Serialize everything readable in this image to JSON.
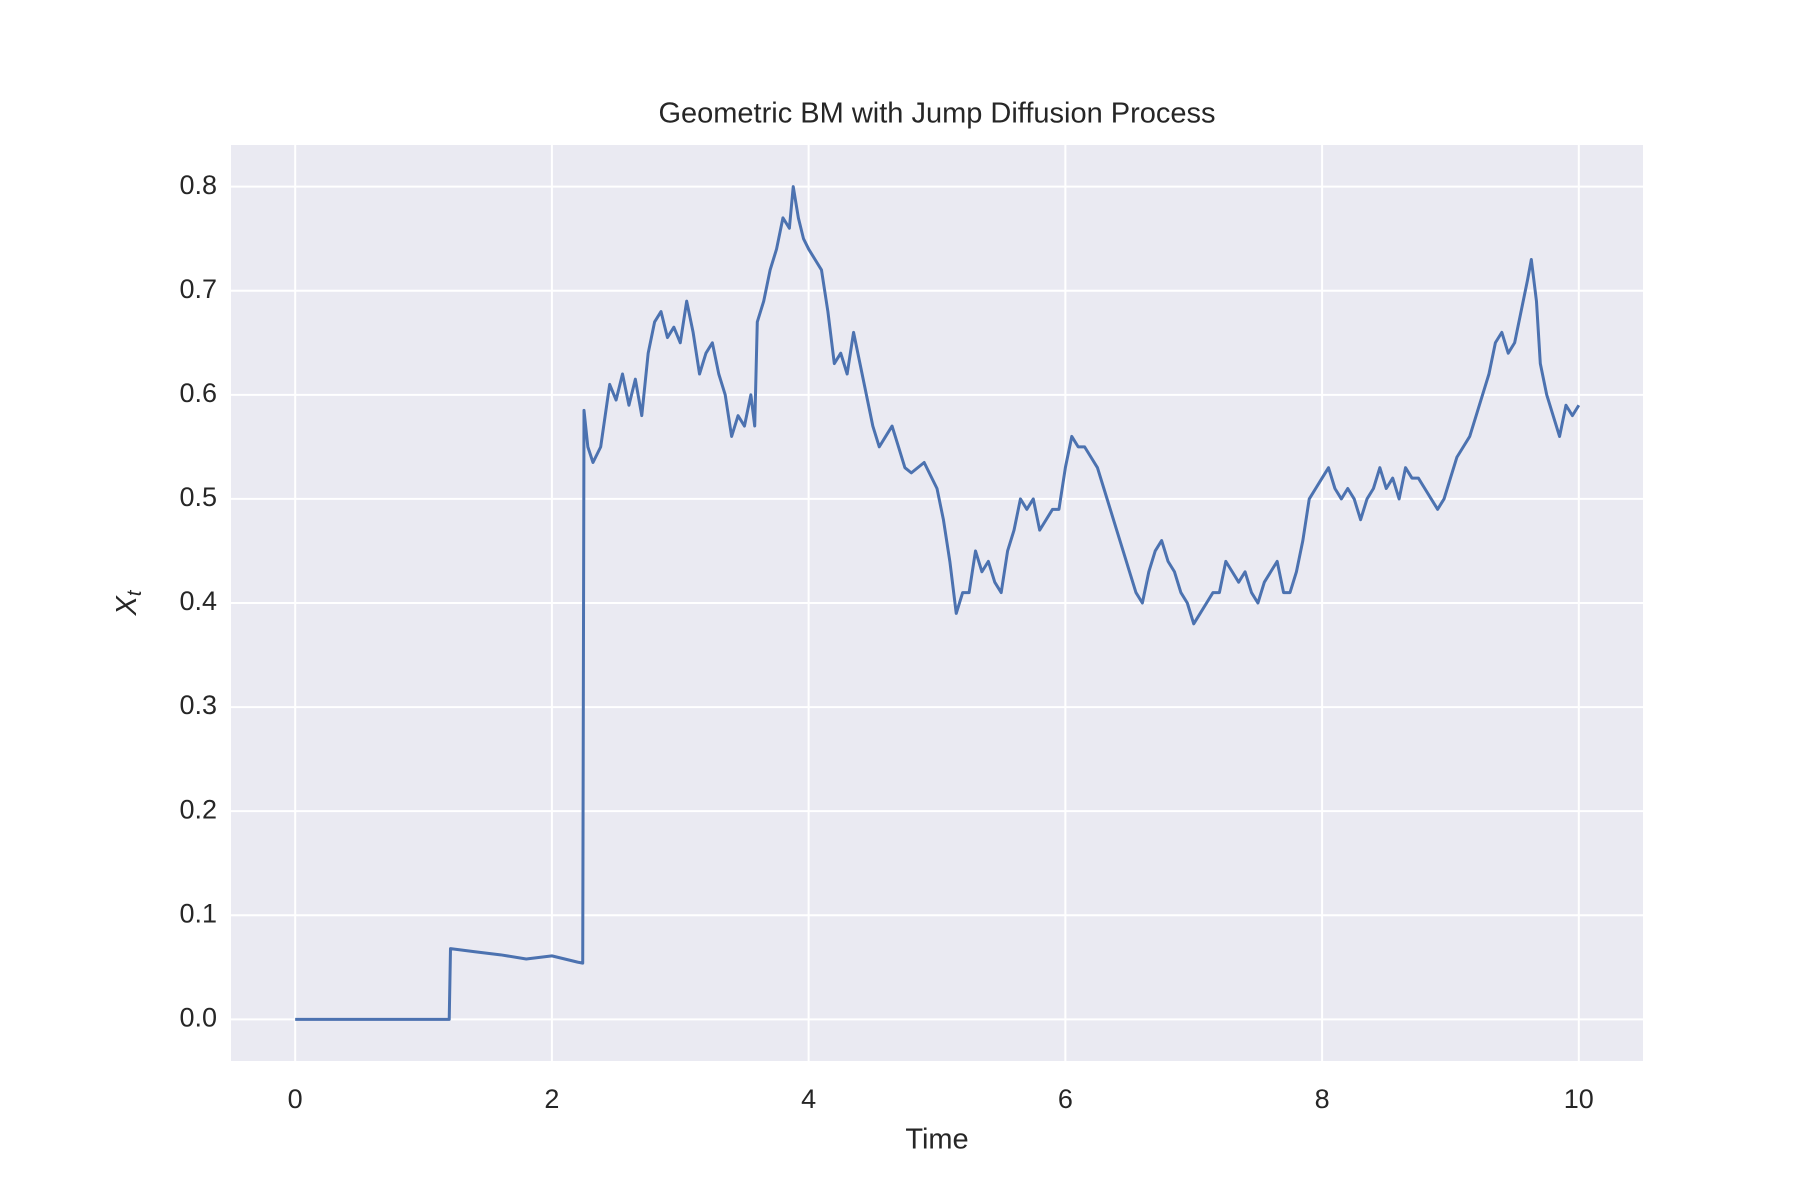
{
  "chart_data": {
    "type": "line",
    "title": "Geometric BM with Jump Diffusion Process",
    "xlabel": "Time",
    "ylabel": {
      "base": "X",
      "subscript": "t"
    },
    "color": "#4c72b0",
    "grid": true,
    "xlim": [
      -0.5,
      10.5
    ],
    "ylim": [
      -0.04,
      0.84
    ],
    "xticks": [
      0,
      2,
      4,
      6,
      8,
      10
    ],
    "yticks": [
      {
        "value": 0,
        "label": "0.0"
      },
      0.1,
      0.2,
      0.3,
      0.4,
      0.5,
      0.6,
      0.7,
      0.8
    ],
    "x": [
      0,
      1.2,
      1.21,
      1.4,
      1.6,
      1.8,
      2.0,
      2.2,
      2.24,
      2.25,
      2.28,
      2.32,
      2.38,
      2.45,
      2.5,
      2.55,
      2.6,
      2.65,
      2.7,
      2.75,
      2.8,
      2.85,
      2.9,
      2.95,
      3.0,
      3.05,
      3.1,
      3.15,
      3.2,
      3.25,
      3.3,
      3.35,
      3.4,
      3.45,
      3.5,
      3.55,
      3.58,
      3.6,
      3.65,
      3.7,
      3.75,
      3.8,
      3.85,
      3.88,
      3.92,
      3.96,
      4.0,
      4.05,
      4.1,
      4.15,
      4.2,
      4.25,
      4.3,
      4.35,
      4.4,
      4.45,
      4.5,
      4.55,
      4.6,
      4.65,
      4.7,
      4.75,
      4.8,
      4.9,
      5.0,
      5.05,
      5.1,
      5.15,
      5.2,
      5.25,
      5.3,
      5.35,
      5.4,
      5.45,
      5.5,
      5.55,
      5.6,
      5.65,
      5.7,
      5.75,
      5.8,
      5.85,
      5.9,
      5.95,
      6.0,
      6.05,
      6.1,
      6.15,
      6.2,
      6.25,
      6.3,
      6.35,
      6.4,
      6.45,
      6.5,
      6.55,
      6.6,
      6.65,
      6.7,
      6.75,
      6.8,
      6.85,
      6.9,
      6.95,
      7.0,
      7.05,
      7.1,
      7.15,
      7.2,
      7.25,
      7.3,
      7.35,
      7.4,
      7.45,
      7.5,
      7.55,
      7.6,
      7.65,
      7.7,
      7.75,
      7.8,
      7.85,
      7.9,
      7.95,
      8.0,
      8.05,
      8.1,
      8.15,
      8.2,
      8.25,
      8.3,
      8.35,
      8.4,
      8.45,
      8.5,
      8.55,
      8.6,
      8.65,
      8.7,
      8.75,
      8.8,
      8.85,
      8.9,
      8.95,
      9.0,
      9.05,
      9.1,
      9.15,
      9.2,
      9.25,
      9.3,
      9.35,
      9.4,
      9.45,
      9.5,
      9.55,
      9.6,
      9.63,
      9.67,
      9.7,
      9.75,
      9.8,
      9.85,
      9.9,
      9.95,
      10.0
    ],
    "values": [
      0,
      0,
      0.068,
      0.065,
      0.062,
      0.058,
      0.061,
      0.055,
      0.054,
      0.585,
      0.55,
      0.535,
      0.55,
      0.61,
      0.595,
      0.62,
      0.59,
      0.615,
      0.58,
      0.64,
      0.67,
      0.68,
      0.655,
      0.665,
      0.65,
      0.69,
      0.66,
      0.62,
      0.64,
      0.65,
      0.62,
      0.6,
      0.56,
      0.58,
      0.57,
      0.6,
      0.57,
      0.67,
      0.69,
      0.72,
      0.74,
      0.77,
      0.76,
      0.8,
      0.77,
      0.75,
      0.74,
      0.73,
      0.72,
      0.68,
      0.63,
      0.64,
      0.62,
      0.66,
      0.63,
      0.6,
      0.57,
      0.55,
      0.56,
      0.57,
      0.55,
      0.53,
      0.525,
      0.535,
      0.51,
      0.48,
      0.44,
      0.39,
      0.41,
      0.41,
      0.45,
      0.43,
      0.44,
      0.42,
      0.41,
      0.45,
      0.47,
      0.5,
      0.49,
      0.5,
      0.47,
      0.48,
      0.49,
      0.49,
      0.53,
      0.56,
      0.55,
      0.55,
      0.54,
      0.53,
      0.51,
      0.49,
      0.47,
      0.45,
      0.43,
      0.41,
      0.4,
      0.43,
      0.45,
      0.46,
      0.44,
      0.43,
      0.41,
      0.4,
      0.38,
      0.39,
      0.4,
      0.41,
      0.41,
      0.44,
      0.43,
      0.42,
      0.43,
      0.41,
      0.4,
      0.42,
      0.43,
      0.44,
      0.41,
      0.41,
      0.43,
      0.46,
      0.5,
      0.51,
      0.52,
      0.53,
      0.51,
      0.5,
      0.51,
      0.5,
      0.48,
      0.5,
      0.51,
      0.53,
      0.51,
      0.52,
      0.5,
      0.53,
      0.52,
      0.52,
      0.51,
      0.5,
      0.49,
      0.5,
      0.52,
      0.54,
      0.55,
      0.56,
      0.58,
      0.6,
      0.62,
      0.65,
      0.66,
      0.64,
      0.65,
      0.68,
      0.71,
      0.73,
      0.69,
      0.63,
      0.6,
      0.58,
      0.56,
      0.59,
      0.58,
      0.59
    ]
  }
}
